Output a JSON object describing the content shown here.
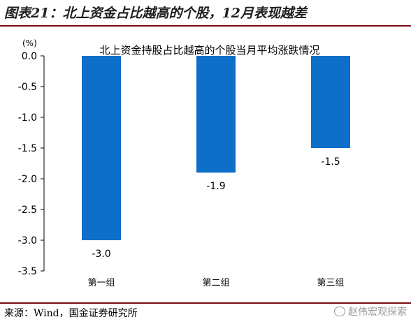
{
  "figure_title": "图表21：北上资金占比越高的个股，12月表现越差",
  "source": "来源：Wind，国金证券研究所",
  "watermark": "赵伟宏观探索",
  "colors": {
    "bar": "#0e6fc8",
    "rule": "#7a0c10",
    "axis": "#000000"
  },
  "chart_data": {
    "type": "bar",
    "title": "北上资金持股占比越高的个股当月平均涨跌情况",
    "unit_label": "(%)",
    "categories": [
      "第一组",
      "第二组",
      "第三组"
    ],
    "values": [
      -3.0,
      -1.9,
      -1.5
    ],
    "value_labels": [
      "-3.0",
      "-1.9",
      "-1.5"
    ],
    "ylim": [
      -3.5,
      0.0
    ],
    "yticks": [
      0.0,
      -0.5,
      -1.0,
      -1.5,
      -2.0,
      -2.5,
      -3.0,
      -3.5
    ],
    "ytick_labels": [
      "0.0",
      "-0.5",
      "-1.0",
      "-1.5",
      "-2.0",
      "-2.5",
      "-3.0",
      "-3.5"
    ],
    "grid": false,
    "legend": "none"
  }
}
